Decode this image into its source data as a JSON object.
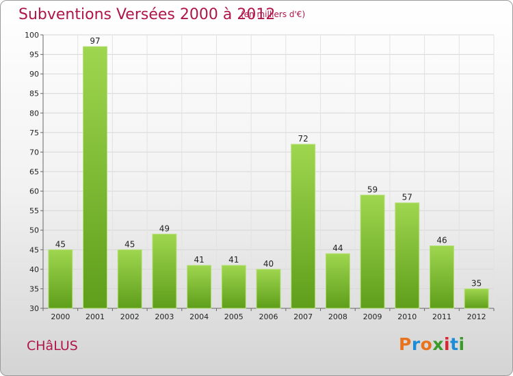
{
  "header": {
    "title": "Subventions Versées 2000 à 2012",
    "subtitle": "(en milliers d'€)"
  },
  "footer": {
    "location": "CHâLUS",
    "logo_text": "Proxiti",
    "logo_colors": [
      "#e8731f",
      "#1c8cd6",
      "#e8731f",
      "#3a9a2a",
      "#d7262f",
      "#1c8cd6",
      "#3a9a2a"
    ]
  },
  "chart_data": {
    "type": "bar",
    "categories": [
      "2000",
      "2001",
      "2002",
      "2003",
      "2004",
      "2005",
      "2006",
      "2007",
      "2008",
      "2009",
      "2010",
      "2011",
      "2012"
    ],
    "values": [
      45,
      97,
      45,
      49,
      41,
      41,
      40,
      72,
      44,
      59,
      57,
      46,
      35
    ],
    "ylim": [
      30,
      100
    ],
    "yticks": [
      30,
      35,
      40,
      45,
      50,
      55,
      60,
      65,
      70,
      75,
      80,
      85,
      90,
      95,
      100
    ],
    "grid": true,
    "bar_color": "#7cc235",
    "data_labels": true
  }
}
